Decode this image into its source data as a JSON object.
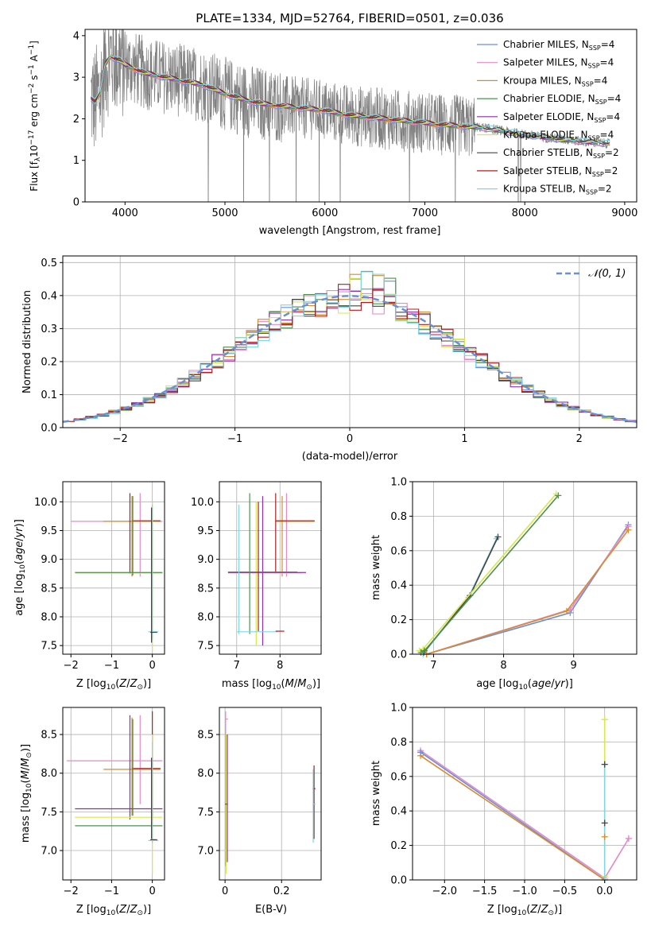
{
  "figure_title": "PLATE=1334, MJD=52764, FIBERID=0501, z=0.036",
  "chart_data": [
    {
      "id": "spectrum",
      "type": "line",
      "title": "PLATE=1334, MJD=52764, FIBERID=0501, z=0.036",
      "xlabel": "wavelength [Angstrom, rest frame]",
      "ylabel": "Flux [f_λ 10^-17 erg cm^-2 s^-1 A^-1]",
      "xlim": [
        3600,
        9120
      ],
      "ylim": [
        0,
        4.15
      ],
      "xticks": [
        "4000",
        "5000",
        "6000",
        "7000",
        "8000",
        "9000"
      ],
      "yticks": [
        "0",
        "1",
        "2",
        "3",
        "4"
      ],
      "grid": false,
      "legend_position": "top-right",
      "observed_color": "#808080",
      "legend": [
        {
          "label": "Chabrier MILES, N",
          "sub": "SSP",
          "suffix": "=4",
          "color": "#6a8fd6"
        },
        {
          "label": "Salpeter MILES, N",
          "sub": "SSP",
          "suffix": "=4",
          "color": "#e58ac9"
        },
        {
          "label": "Kroupa MILES, N",
          "sub": "SSP",
          "suffix": "=4",
          "color": "#d98a2e"
        },
        {
          "label": "Chabrier ELODIE, N",
          "sub": "SSP",
          "suffix": "=4",
          "color": "#4f8f4f"
        },
        {
          "label": "Salpeter ELODIE, N",
          "sub": "SSP",
          "suffix": "=4",
          "color": "#8e2fa8"
        },
        {
          "label": "Kroupa ELODIE, N",
          "sub": "SSP",
          "suffix": "=4",
          "color": "#d7e84a"
        },
        {
          "label": "Chabrier STELIB, N",
          "sub": "SSP",
          "suffix": "=2",
          "color": "#444444"
        },
        {
          "label": "Salpeter STELIB, N",
          "sub": "SSP",
          "suffix": "=2",
          "color": "#b01e1e"
        },
        {
          "label": "Kroupa STELIB, N",
          "sub": "SSP",
          "suffix": "=2",
          "color": "#7fd6e6"
        }
      ],
      "model_curve": {
        "x": [
          3660,
          3700,
          3750,
          3800,
          3850,
          3900,
          3950,
          4000,
          4100,
          4200,
          4300,
          4400,
          4500,
          4600,
          4700,
          4800,
          4900,
          5000,
          5200,
          5400,
          5600,
          5800,
          6000,
          6200,
          6400,
          6600,
          6800,
          7000,
          7200,
          7400,
          7600,
          7800,
          8000,
          8200,
          8400,
          8600,
          8850
        ],
        "y": [
          2.5,
          2.4,
          2.6,
          3.3,
          3.5,
          3.45,
          3.4,
          3.3,
          3.2,
          3.1,
          3.05,
          3.0,
          2.95,
          2.9,
          2.85,
          2.8,
          2.7,
          2.6,
          2.45,
          2.35,
          2.3,
          2.25,
          2.2,
          2.1,
          2.05,
          2.0,
          1.95,
          1.9,
          1.85,
          1.82,
          1.78,
          1.7,
          1.62,
          1.55,
          1.5,
          1.45,
          1.4
        ]
      }
    },
    {
      "id": "residuals",
      "type": "line",
      "xlabel": "(data-model)/error",
      "ylabel": "Normed distribution",
      "xlim": [
        -2.5,
        2.5
      ],
      "ylim": [
        0,
        0.52
      ],
      "xticks": [
        -2,
        -1,
        0,
        1,
        2
      ],
      "yticks": [
        0.0,
        0.1,
        0.2,
        0.3,
        0.4,
        0.5
      ],
      "grid": true,
      "legend_position": "top-right",
      "normal_label": "𝒩(0, 1)",
      "normal_color": "#6a8fd6",
      "histogram_bin_width": 0.1
    },
    {
      "id": "age-vs-z",
      "type": "scatter",
      "xlabel": "Z [log10(Z/Z⊙)]",
      "ylabel": "age [log10(age/yr)]",
      "xlim": [
        -2.2,
        0.3
      ],
      "ylim": [
        7.35,
        10.35
      ],
      "xticks": [
        -2,
        -1,
        0
      ],
      "yticks": [
        7.5,
        8.0,
        8.5,
        9.0,
        9.5,
        10.0
      ],
      "grid": true
    },
    {
      "id": "age-vs-mass",
      "type": "scatter",
      "xlabel": "mass [log10(M/M⊙)]",
      "xlim": [
        6.6,
        8.95
      ],
      "ylim": [
        7.35,
        10.35
      ],
      "xticks": [
        7,
        8
      ],
      "yticks": [
        7.5,
        8.0,
        8.5,
        9.0,
        9.5,
        10.0
      ],
      "grid": true
    },
    {
      "id": "massweight-vs-age",
      "type": "line",
      "xlabel": "age [log10(age/yr)]",
      "ylabel": "mass weight",
      "xlim": [
        6.7,
        9.9
      ],
      "ylim": [
        0.0,
        1.0
      ],
      "xticks": [
        7,
        8,
        9
      ],
      "yticks": [
        0.0,
        0.2,
        0.4,
        0.6,
        0.8,
        1.0
      ],
      "grid": true,
      "series": [
        {
          "color": "#7fd6e6",
          "x": [
            6.85,
            7.5,
            7.9
          ],
          "y": [
            0.0,
            0.33,
            0.67
          ]
        },
        {
          "color": "#444444",
          "x": [
            6.86,
            7.52,
            7.92
          ],
          "y": [
            0.01,
            0.34,
            0.68
          ]
        },
        {
          "color": "#d7e84a",
          "x": [
            6.8,
            6.85,
            8.75
          ],
          "y": [
            0.02,
            0.03,
            0.93
          ]
        },
        {
          "color": "#4f8f4f",
          "x": [
            6.82,
            6.87,
            8.78
          ],
          "y": [
            0.01,
            0.02,
            0.92
          ]
        },
        {
          "color": "#6a8fd6",
          "x": [
            6.9,
            8.95,
            9.78
          ],
          "y": [
            0.0,
            0.24,
            0.75
          ]
        },
        {
          "color": "#e58ac9",
          "x": [
            6.9,
            8.95,
            9.78
          ],
          "y": [
            0.0,
            0.26,
            0.74
          ]
        },
        {
          "color": "#d98a2e",
          "x": [
            6.9,
            8.9,
            9.78
          ],
          "y": [
            0.0,
            0.25,
            0.72
          ]
        }
      ]
    },
    {
      "id": "mass-vs-z",
      "type": "scatter",
      "xlabel": "Z [log10(Z/Z⊙)]",
      "ylabel": "mass [log10(M/M⊙)]",
      "xlim": [
        -2.2,
        0.3
      ],
      "ylim": [
        6.62,
        8.85
      ],
      "xticks": [
        -2,
        -1,
        0
      ],
      "yticks": [
        7.0,
        7.5,
        8.0,
        8.5
      ],
      "grid": true
    },
    {
      "id": "mass-vs-ebv",
      "type": "scatter",
      "xlabel": "E(B-V)",
      "xlim": [
        -0.02,
        0.34
      ],
      "ylim": [
        6.62,
        8.85
      ],
      "xticks": [
        0.0,
        0.2
      ],
      "yticks": [
        7.0,
        7.5,
        8.0,
        8.5
      ],
      "grid": true
    },
    {
      "id": "massweight-vs-z",
      "type": "line",
      "xlabel": "Z [log10(Z/Z⊙)]",
      "ylabel": "mass weight",
      "xlim": [
        -2.4,
        0.4
      ],
      "ylim": [
        0.0,
        1.0
      ],
      "xticks": [
        -2.0,
        -1.5,
        -1.0,
        -0.5,
        0.0
      ],
      "yticks": [
        0.0,
        0.2,
        0.4,
        0.6,
        0.8,
        1.0
      ],
      "grid": true,
      "series": [
        {
          "color": "#e58ac9",
          "x": [
            -2.3,
            0.0,
            0.3
          ],
          "y": [
            0.75,
            0.01,
            0.24
          ]
        },
        {
          "color": "#6a8fd6",
          "x": [
            -2.3,
            0.0
          ],
          "y": [
            0.74,
            0.0
          ]
        },
        {
          "color": "#d98a2e",
          "x": [
            -2.3,
            0.0
          ],
          "y": [
            0.72,
            0.0
          ]
        },
        {
          "color": "#d7e84a",
          "x": [
            0.0,
            0.0
          ],
          "y": [
            0.02,
            0.93
          ]
        },
        {
          "color": "#7fd6e6",
          "x": [
            0.0,
            0.0
          ],
          "y": [
            0.0,
            0.67
          ]
        }
      ],
      "markers": [
        {
          "color": "#444444",
          "x": 0.0,
          "y": 0.67
        },
        {
          "color": "#444444",
          "x": 0.0,
          "y": 0.33
        },
        {
          "color": "#d7e84a",
          "x": 0.0,
          "y": 0.93
        },
        {
          "color": "#d98a2e",
          "x": 0.0,
          "y": 0.25
        },
        {
          "color": "#e58ac9",
          "x": 0.3,
          "y": 0.24
        },
        {
          "color": "#6a8fd6",
          "x": -2.3,
          "y": 0.74
        }
      ]
    }
  ]
}
